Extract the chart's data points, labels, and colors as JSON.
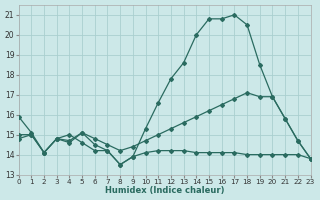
{
  "xlabel": "Humidex (Indice chaleur)",
  "bg_color": "#cce8e8",
  "grid_color": "#aacfcf",
  "line_color": "#2a6b60",
  "xlim": [
    0,
    23
  ],
  "ylim": [
    13,
    21.5
  ],
  "xticks": [
    0,
    1,
    2,
    3,
    4,
    5,
    6,
    7,
    8,
    9,
    10,
    11,
    12,
    13,
    14,
    15,
    16,
    17,
    18,
    19,
    20,
    21,
    22,
    23
  ],
  "yticks": [
    13,
    14,
    15,
    16,
    17,
    18,
    19,
    20,
    21
  ],
  "line1_x": [
    0,
    1,
    2,
    3,
    4,
    5,
    6,
    7,
    8,
    9,
    10,
    11,
    12,
    13,
    14,
    15,
    16,
    17,
    18,
    19,
    20,
    21,
    22,
    23
  ],
  "line1_y": [
    15.9,
    15.1,
    14.1,
    14.8,
    15.0,
    14.6,
    14.2,
    14.2,
    13.5,
    13.9,
    15.3,
    16.6,
    17.8,
    18.6,
    20.0,
    20.8,
    20.8,
    21.0,
    20.5,
    18.5,
    16.9,
    15.8,
    14.7,
    13.8
  ],
  "line2_x": [
    0,
    1,
    2,
    3,
    4,
    5,
    6,
    7,
    8,
    9,
    10,
    11,
    12,
    13,
    14,
    15,
    16,
    17,
    18,
    19,
    20,
    21,
    22,
    23
  ],
  "line2_y": [
    15.0,
    15.0,
    14.1,
    14.8,
    14.7,
    15.1,
    14.8,
    14.5,
    14.2,
    14.4,
    14.7,
    15.0,
    15.3,
    15.6,
    15.9,
    16.2,
    16.5,
    16.8,
    17.1,
    16.9,
    16.9,
    15.8,
    14.7,
    13.8
  ],
  "line3_x": [
    0,
    1,
    2,
    3,
    4,
    5,
    6,
    7,
    8,
    9,
    10,
    11,
    12,
    13,
    14,
    15,
    16,
    17,
    18,
    19,
    20,
    21,
    22,
    23
  ],
  "line3_y": [
    14.8,
    15.0,
    14.1,
    14.8,
    14.6,
    15.1,
    14.5,
    14.2,
    13.5,
    13.9,
    14.1,
    14.2,
    14.2,
    14.2,
    14.1,
    14.1,
    14.1,
    14.1,
    14.0,
    14.0,
    14.0,
    14.0,
    14.0,
    13.8
  ]
}
